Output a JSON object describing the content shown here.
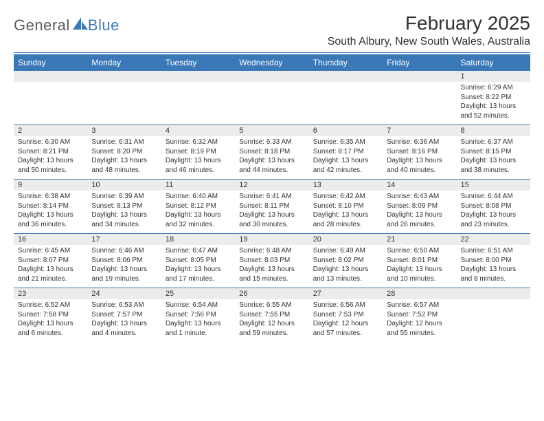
{
  "logo": {
    "text1": "General",
    "text2": "Blue",
    "shape_color": "#3b78b8"
  },
  "title": "February 2025",
  "location": "South Albury, New South Wales, Australia",
  "colors": {
    "header_bar": "#3b78b8",
    "header_text": "#ffffff",
    "daynum_bg": "#ececec",
    "rule": "#3b78b8",
    "body_text": "#333333",
    "logo_gray": "#5a5a5a"
  },
  "typography": {
    "title_fontsize": 28,
    "location_fontsize": 16,
    "dayhead_fontsize": 12,
    "daynum_fontsize": 11,
    "cell_fontsize": 10
  },
  "day_headers": [
    "Sunday",
    "Monday",
    "Tuesday",
    "Wednesday",
    "Thursday",
    "Friday",
    "Saturday"
  ],
  "weeks": [
    [
      {
        "n": "",
        "lines": []
      },
      {
        "n": "",
        "lines": []
      },
      {
        "n": "",
        "lines": []
      },
      {
        "n": "",
        "lines": []
      },
      {
        "n": "",
        "lines": []
      },
      {
        "n": "",
        "lines": []
      },
      {
        "n": "1",
        "lines": [
          "Sunrise: 6:29 AM",
          "Sunset: 8:22 PM",
          "Daylight: 13 hours and 52 minutes."
        ]
      }
    ],
    [
      {
        "n": "2",
        "lines": [
          "Sunrise: 6:30 AM",
          "Sunset: 8:21 PM",
          "Daylight: 13 hours and 50 minutes."
        ]
      },
      {
        "n": "3",
        "lines": [
          "Sunrise: 6:31 AM",
          "Sunset: 8:20 PM",
          "Daylight: 13 hours and 48 minutes."
        ]
      },
      {
        "n": "4",
        "lines": [
          "Sunrise: 6:32 AM",
          "Sunset: 8:19 PM",
          "Daylight: 13 hours and 46 minutes."
        ]
      },
      {
        "n": "5",
        "lines": [
          "Sunrise: 6:33 AM",
          "Sunset: 8:18 PM",
          "Daylight: 13 hours and 44 minutes."
        ]
      },
      {
        "n": "6",
        "lines": [
          "Sunrise: 6:35 AM",
          "Sunset: 8:17 PM",
          "Daylight: 13 hours and 42 minutes."
        ]
      },
      {
        "n": "7",
        "lines": [
          "Sunrise: 6:36 AM",
          "Sunset: 8:16 PM",
          "Daylight: 13 hours and 40 minutes."
        ]
      },
      {
        "n": "8",
        "lines": [
          "Sunrise: 6:37 AM",
          "Sunset: 8:15 PM",
          "Daylight: 13 hours and 38 minutes."
        ]
      }
    ],
    [
      {
        "n": "9",
        "lines": [
          "Sunrise: 6:38 AM",
          "Sunset: 8:14 PM",
          "Daylight: 13 hours and 36 minutes."
        ]
      },
      {
        "n": "10",
        "lines": [
          "Sunrise: 6:39 AM",
          "Sunset: 8:13 PM",
          "Daylight: 13 hours and 34 minutes."
        ]
      },
      {
        "n": "11",
        "lines": [
          "Sunrise: 6:40 AM",
          "Sunset: 8:12 PM",
          "Daylight: 13 hours and 32 minutes."
        ]
      },
      {
        "n": "12",
        "lines": [
          "Sunrise: 6:41 AM",
          "Sunset: 8:11 PM",
          "Daylight: 13 hours and 30 minutes."
        ]
      },
      {
        "n": "13",
        "lines": [
          "Sunrise: 6:42 AM",
          "Sunset: 8:10 PM",
          "Daylight: 13 hours and 28 minutes."
        ]
      },
      {
        "n": "14",
        "lines": [
          "Sunrise: 6:43 AM",
          "Sunset: 8:09 PM",
          "Daylight: 13 hours and 26 minutes."
        ]
      },
      {
        "n": "15",
        "lines": [
          "Sunrise: 6:44 AM",
          "Sunset: 8:08 PM",
          "Daylight: 13 hours and 23 minutes."
        ]
      }
    ],
    [
      {
        "n": "16",
        "lines": [
          "Sunrise: 6:45 AM",
          "Sunset: 8:07 PM",
          "Daylight: 13 hours and 21 minutes."
        ]
      },
      {
        "n": "17",
        "lines": [
          "Sunrise: 6:46 AM",
          "Sunset: 8:06 PM",
          "Daylight: 13 hours and 19 minutes."
        ]
      },
      {
        "n": "18",
        "lines": [
          "Sunrise: 6:47 AM",
          "Sunset: 8:05 PM",
          "Daylight: 13 hours and 17 minutes."
        ]
      },
      {
        "n": "19",
        "lines": [
          "Sunrise: 6:48 AM",
          "Sunset: 8:03 PM",
          "Daylight: 13 hours and 15 minutes."
        ]
      },
      {
        "n": "20",
        "lines": [
          "Sunrise: 6:49 AM",
          "Sunset: 8:02 PM",
          "Daylight: 13 hours and 13 minutes."
        ]
      },
      {
        "n": "21",
        "lines": [
          "Sunrise: 6:50 AM",
          "Sunset: 8:01 PM",
          "Daylight: 13 hours and 10 minutes."
        ]
      },
      {
        "n": "22",
        "lines": [
          "Sunrise: 6:51 AM",
          "Sunset: 8:00 PM",
          "Daylight: 13 hours and 8 minutes."
        ]
      }
    ],
    [
      {
        "n": "23",
        "lines": [
          "Sunrise: 6:52 AM",
          "Sunset: 7:58 PM",
          "Daylight: 13 hours and 6 minutes."
        ]
      },
      {
        "n": "24",
        "lines": [
          "Sunrise: 6:53 AM",
          "Sunset: 7:57 PM",
          "Daylight: 13 hours and 4 minutes."
        ]
      },
      {
        "n": "25",
        "lines": [
          "Sunrise: 6:54 AM",
          "Sunset: 7:56 PM",
          "Daylight: 13 hours and 1 minute."
        ]
      },
      {
        "n": "26",
        "lines": [
          "Sunrise: 6:55 AM",
          "Sunset: 7:55 PM",
          "Daylight: 12 hours and 59 minutes."
        ]
      },
      {
        "n": "27",
        "lines": [
          "Sunrise: 6:56 AM",
          "Sunset: 7:53 PM",
          "Daylight: 12 hours and 57 minutes."
        ]
      },
      {
        "n": "28",
        "lines": [
          "Sunrise: 6:57 AM",
          "Sunset: 7:52 PM",
          "Daylight: 12 hours and 55 minutes."
        ]
      },
      {
        "n": "",
        "lines": []
      }
    ]
  ]
}
